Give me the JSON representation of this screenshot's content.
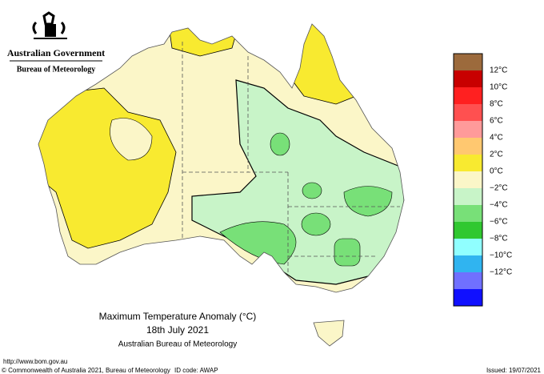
{
  "header": {
    "agency": "Australian Government",
    "bureau": "Bureau of Meteorology"
  },
  "legend": {
    "items": [
      {
        "color": "#9c6a3c"
      },
      {
        "label": "12°C",
        "color": "#c80000"
      },
      {
        "label": "10°C",
        "color": "#ff2020"
      },
      {
        "label": "8°C",
        "color": "#ff5050"
      },
      {
        "label": "6°C",
        "color": "#ff9a9a"
      },
      {
        "label": "4°C",
        "color": "#ffc870"
      },
      {
        "label": "2°C",
        "color": "#f8ea30"
      },
      {
        "label": "0°C",
        "color": "#fbf6c8"
      },
      {
        "label": "−2°C",
        "color": "#c8f4c8"
      },
      {
        "label": "−4°C",
        "color": "#78e078"
      },
      {
        "label": "−6°C",
        "color": "#30c830"
      },
      {
        "label": "−8°C",
        "color": "#90ffff"
      },
      {
        "label": "−10°C",
        "color": "#30b4f0"
      },
      {
        "label": "−12°C",
        "color": "#7070ff"
      },
      {
        "color": "#1010ff"
      }
    ]
  },
  "caption": {
    "title": "Maximum Temperature Anomaly (°C)",
    "date": "18th July 2021",
    "source": "Australian Bureau of Meteorology"
  },
  "footer": {
    "url": "http://www.bom.gov.au",
    "copyright": "© Commonwealth of Australia 2021, Bureau of Meteorology",
    "id_code": "ID code: AWAP",
    "issued": "Issued: 19/07/2021"
  }
}
